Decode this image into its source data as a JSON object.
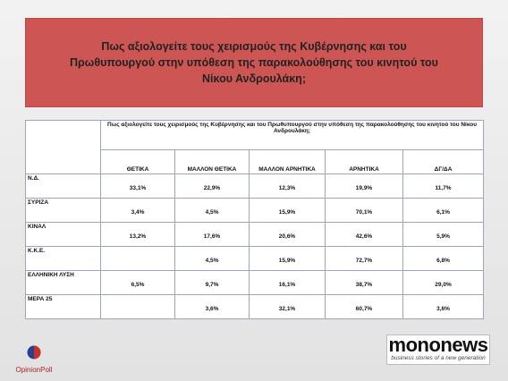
{
  "header": {
    "title": "Πως αξιολογείτε τους χειρισμούς της Κυβέρνησης και του Πρωθυπουργού στην υπόθεση της παρακολούθησης του κινητού του Νίκου Ανδρουλάκη;"
  },
  "table": {
    "question": "Πως αξιολογείτε τους χειρισμούς της Κυβέρνησης και του Πρωθυπουργού στην υπόθεση της παρακολούθησης του κινητού του Νίκου Ανδρουλάκη;",
    "columns": [
      "ΘΕΤΙΚΑ",
      "ΜΑΛΛΟΝ ΘΕΤΙΚΑ",
      "ΜΑΛΛΟΝ ΑΡΝΗΤΙΚΑ",
      "ΑΡΝΗΤΙΚΑ",
      "ΔΓ/ΔΑ"
    ],
    "rows": [
      [
        "Ν.Δ.",
        "33,1%",
        "22,9%",
        "12,3%",
        "19,9%",
        "11,7%"
      ],
      [
        "ΣΥΡΙΖΑ",
        "3,4%",
        "4,5%",
        "15,9%",
        "70,1%",
        "6,1%"
      ],
      [
        "ΚΙΝΑΛ",
        "13,2%",
        "17,6%",
        "20,6%",
        "42,6%",
        "5,9%"
      ],
      [
        "Κ.Κ.Ε.",
        null,
        "4,5%",
        "15,9%",
        "72,7%",
        "6,8%"
      ],
      [
        "ΕΛΛΗΝΙΚΗ ΛΥΣΗ",
        "6,5%",
        "9,7%",
        "16,1%",
        "38,7%",
        "29,0%"
      ],
      [
        "ΜΕΡΑ 25",
        null,
        "3,6%",
        "32,1%",
        "60,7%",
        "3,6%"
      ]
    ]
  },
  "footer": {
    "left_logo": "OpinionPoll",
    "right_logo": "mononews",
    "right_tagline": "business stories of a new generation"
  }
}
